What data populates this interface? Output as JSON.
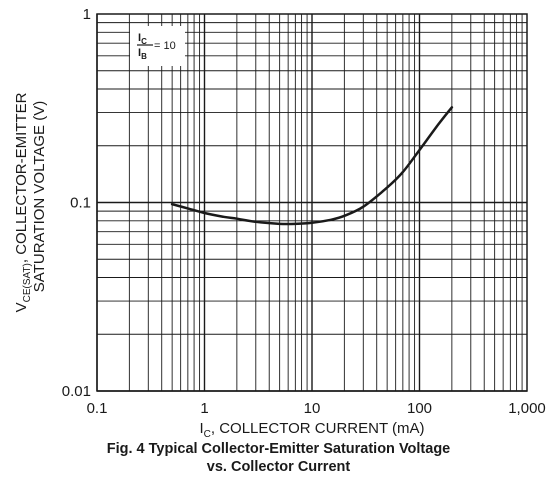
{
  "chart_data": {
    "type": "line",
    "x_scale": "log",
    "y_scale": "log",
    "xlim": [
      0.1,
      1000
    ],
    "ylim": [
      0.01,
      1
    ],
    "grid": true,
    "x_ticks": [
      {
        "value": 0.1,
        "label": "0.1"
      },
      {
        "value": 1,
        "label": "1"
      },
      {
        "value": 10,
        "label": "10"
      },
      {
        "value": 100,
        "label": "100"
      },
      {
        "value": 1000,
        "label": "1,000"
      }
    ],
    "y_ticks": [
      {
        "value": 1,
        "label": "1"
      },
      {
        "value": 0.1,
        "label": "0.1"
      },
      {
        "value": 0.01,
        "label": "0.01"
      }
    ],
    "xlabel": {
      "main": "I",
      "sub": "C",
      "rest": ", COLLECTOR CURRENT (mA)"
    },
    "ylabel_line1": {
      "main": "V",
      "sub": "CE(SAT)",
      "rest": ", COLLECTOR-EMITTER"
    },
    "ylabel_line2": "SATURATION VOLTAGE (V)",
    "annotation": {
      "num_main": "I",
      "num_sub": "C",
      "den_main": "I",
      "den_sub": "B",
      "rest": " = 10"
    },
    "series": [
      {
        "x": [
          0.5,
          0.7,
          1,
          1.5,
          2,
          3,
          5,
          7,
          10,
          15,
          20,
          30,
          50,
          70,
          100,
          150,
          200
        ],
        "y": [
          0.098,
          0.093,
          0.088,
          0.084,
          0.082,
          0.079,
          0.077,
          0.077,
          0.078,
          0.081,
          0.085,
          0.095,
          0.12,
          0.145,
          0.19,
          0.26,
          0.32
        ]
      }
    ]
  },
  "caption": {
    "line1": "Fig. 4 Typical Collector-Emitter Saturation Voltage",
    "line2": "vs. Collector Current"
  }
}
